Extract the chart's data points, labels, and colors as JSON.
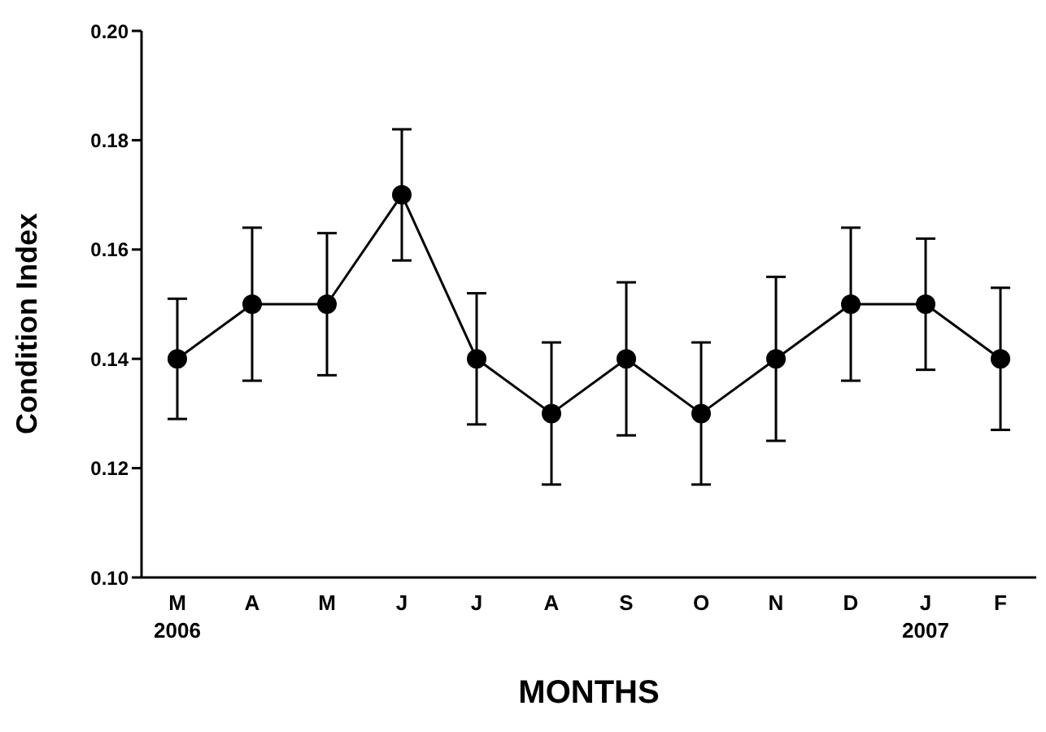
{
  "chart_data": {
    "type": "line",
    "xlabel": "MONTHS",
    "ylabel": "Condition Index",
    "categories": [
      "M\n2006",
      "A",
      "M",
      "J",
      "J",
      "A",
      "S",
      "O",
      "N",
      "D",
      "J\n2007",
      "F"
    ],
    "series": [
      {
        "color": "#000000",
        "values": [
          0.14,
          0.15,
          0.15,
          0.17,
          0.14,
          0.13,
          0.14,
          0.13,
          0.14,
          0.15,
          0.15,
          0.14
        ],
        "errors": [
          [
            0.129,
            0.151
          ],
          [
            0.136,
            0.164
          ],
          [
            0.137,
            0.163
          ],
          [
            0.158,
            0.182
          ],
          [
            0.128,
            0.152
          ],
          [
            0.117,
            0.143
          ],
          [
            0.126,
            0.154
          ],
          [
            0.117,
            0.143
          ],
          [
            0.125,
            0.155
          ],
          [
            0.136,
            0.164
          ],
          [
            0.138,
            0.162
          ],
          [
            0.127,
            0.153
          ]
        ]
      }
    ],
    "ylim": [
      0.1,
      0.2
    ],
    "yticks": [
      {
        "value": 0.1,
        "label": "0.10"
      },
      {
        "value": 0.12,
        "label": "0.12"
      },
      {
        "value": 0.14,
        "label": "0.14"
      },
      {
        "value": 0.16,
        "label": "0.16"
      },
      {
        "value": 0.18,
        "label": "0.18"
      },
      {
        "value": 0.2,
        "label": "0.20"
      }
    ],
    "grid": false,
    "legend": false,
    "marker": "circle",
    "line_style": "solid"
  }
}
